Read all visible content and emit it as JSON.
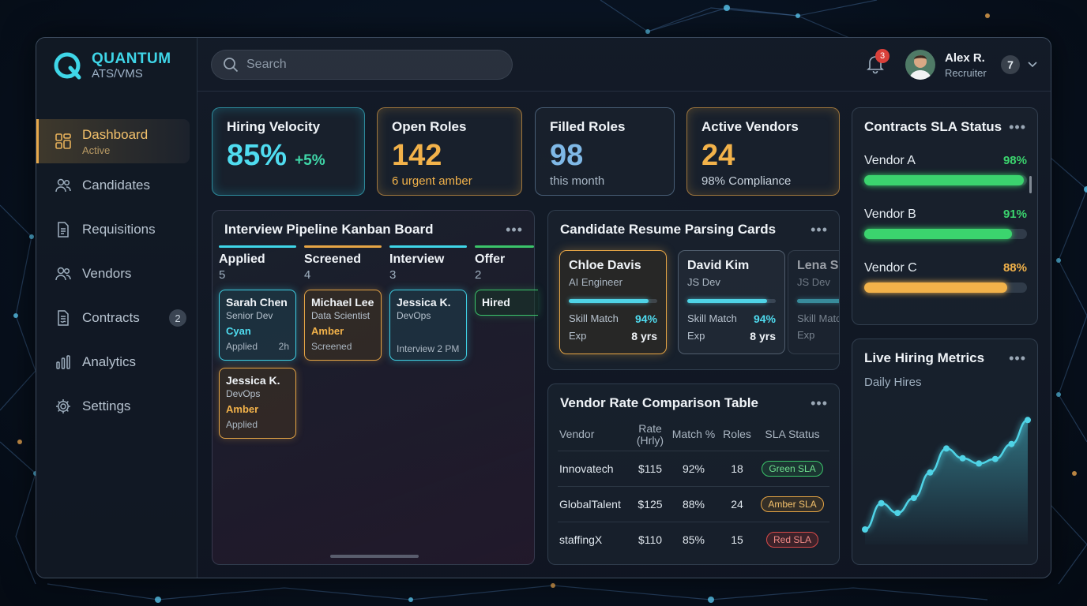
{
  "brand": {
    "name": "QUANTUM",
    "product": "ATS/VMS"
  },
  "sidebar": {
    "items": [
      {
        "label": "Dashboard",
        "sub": "Active",
        "icon": "dashboard-icon"
      },
      {
        "label": "Candidates",
        "icon": "users-icon"
      },
      {
        "label": "Requisitions",
        "icon": "document-icon"
      },
      {
        "label": "Vendors",
        "icon": "users-icon"
      },
      {
        "label": "Contracts",
        "icon": "contract-icon",
        "badge": "2"
      },
      {
        "label": "Analytics",
        "icon": "bar-chart-icon"
      },
      {
        "label": "Settings",
        "icon": "gear-icon"
      }
    ]
  },
  "header": {
    "search_placeholder": "Search",
    "notifications": "3",
    "user": {
      "name": "Alex R.",
      "role": "Recruiter",
      "count": "7"
    }
  },
  "kpis": {
    "velocity": {
      "title": "Hiring Velocity",
      "value": "85%",
      "delta": "+5%"
    },
    "open": {
      "title": "Open Roles",
      "value": "142",
      "sub": "6 urgent amber"
    },
    "filled": {
      "title": "Filled Roles",
      "value": "98",
      "sub": "this month"
    },
    "vendors": {
      "title": "Active Vendors",
      "value": "24",
      "sub": "98% Compliance"
    }
  },
  "kanban": {
    "title": "Interview Pipeline Kanban Board",
    "columns": [
      {
        "name": "Applied",
        "count": "5"
      },
      {
        "name": "Screened",
        "count": "4"
      },
      {
        "name": "Interview",
        "count": "3"
      },
      {
        "name": "Offer",
        "count": "2"
      }
    ],
    "cards": {
      "c1": {
        "name": "Sarah Chen",
        "role": "Senior Dev",
        "tag": "Cyan",
        "status": "Applied",
        "time": "2h"
      },
      "c2": {
        "name": "Michael Lee",
        "role": "Data Scientist",
        "tag": "Amber",
        "status": "Screened"
      },
      "c3": {
        "name": "Jessica K.",
        "role": "DevOps",
        "status": "Interview 2 PM"
      },
      "c4": {
        "name": "Hired"
      },
      "c5": {
        "name": "Jessica K.",
        "role": "DevOps",
        "tag": "Amber",
        "status": "Applied"
      }
    }
  },
  "resumes": {
    "title": "Candidate Resume Parsing Cards",
    "skill_label": "Skill Match",
    "exp_label": "Exp",
    "cards": [
      {
        "name": "Chloe Davis",
        "role": "AI Engineer",
        "match": "94%",
        "exp": "8 yrs",
        "progress": 0.9
      },
      {
        "name": "David Kim",
        "role": "JS Dev",
        "match": "94%",
        "exp": "8 yrs",
        "progress": 0.9
      },
      {
        "name": "Lena S",
        "role": "JS Dev",
        "match": "",
        "exp": "",
        "progress": 0.9
      }
    ]
  },
  "vendor_table": {
    "title": "Vendor Rate Comparison Table",
    "headers": [
      "Vendor",
      "Rate (Hrly)",
      "Match %",
      "Roles",
      "SLA Status"
    ],
    "rows": [
      {
        "vendor": "Innovatech",
        "rate": "$115",
        "match": "92%",
        "roles": "18",
        "sla": "Green SLA"
      },
      {
        "vendor": "GlobalTalent",
        "rate": "$125",
        "match": "88%",
        "roles": "24",
        "sla": "Amber SLA"
      },
      {
        "vendor": "staffingX",
        "rate": "$110",
        "match": "85%",
        "roles": "15",
        "sla": "Red SLA"
      }
    ]
  },
  "sla": {
    "title": "Contracts SLA Status",
    "rows": [
      {
        "name": "Vendor A",
        "value": "98%",
        "fraction": 0.98,
        "color": "#3bd46e"
      },
      {
        "name": "Vendor B",
        "value": "91%",
        "fraction": 0.91,
        "color": "#3bd46e"
      },
      {
        "name": "Vendor C",
        "value": "88%",
        "fraction": 0.88,
        "color": "#f2b24a"
      }
    ]
  },
  "metrics": {
    "title": "Live Hiring Metrics",
    "subtitle": "Daily Hires"
  },
  "chart_data": {
    "type": "area",
    "title": "Live Hiring Metrics",
    "subtitle": "Daily Hires",
    "x": [
      1,
      2,
      3,
      4,
      5,
      6,
      7,
      8,
      9,
      10,
      11
    ],
    "values": [
      2,
      5.5,
      4.2,
      6.2,
      9.6,
      12.8,
      11.5,
      10.8,
      11.4,
      13.4,
      16.6
    ],
    "ylim": [
      0,
      20
    ],
    "grid": false,
    "color": "#4fd3e6"
  },
  "colors": {
    "cyan": "#3fd6e8",
    "amber": "#f2b24a",
    "green": "#3bd46e",
    "red": "#d94a4a"
  }
}
